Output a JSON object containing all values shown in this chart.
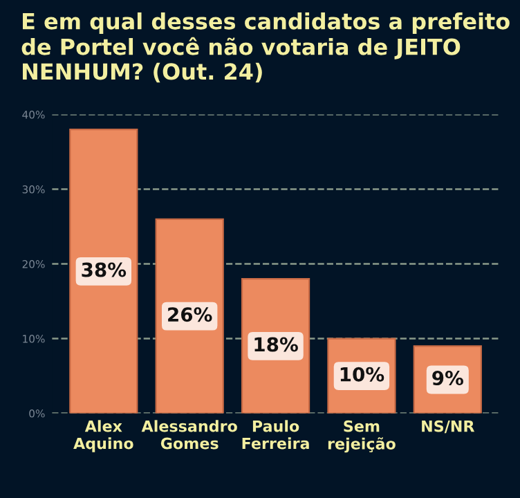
{
  "chart_data": {
    "type": "bar",
    "title": "E em qual desses candidatos a prefeito de Portel você não votaria de JEITO NENHUM? (Out. 24)",
    "categories": [
      "Alex\nAquino",
      "Alessandro\nGomes",
      "Paulo\nFerreira",
      "Sem\nrejeição",
      "NS/NR"
    ],
    "values": [
      38,
      26,
      18,
      10,
      9
    ],
    "value_labels": [
      "38%",
      "26%",
      "18%",
      "10%",
      "9%"
    ],
    "color": "#ec8a5f",
    "ylim": [
      0,
      40
    ],
    "yticks": [
      {
        "value": 0,
        "label": "0%"
      },
      {
        "value": 10,
        "label": "10%"
      },
      {
        "value": 20,
        "label": "20%"
      },
      {
        "value": 30,
        "label": "30%"
      },
      {
        "value": 40,
        "label": "40%"
      }
    ],
    "grid": "y",
    "legend": false
  }
}
